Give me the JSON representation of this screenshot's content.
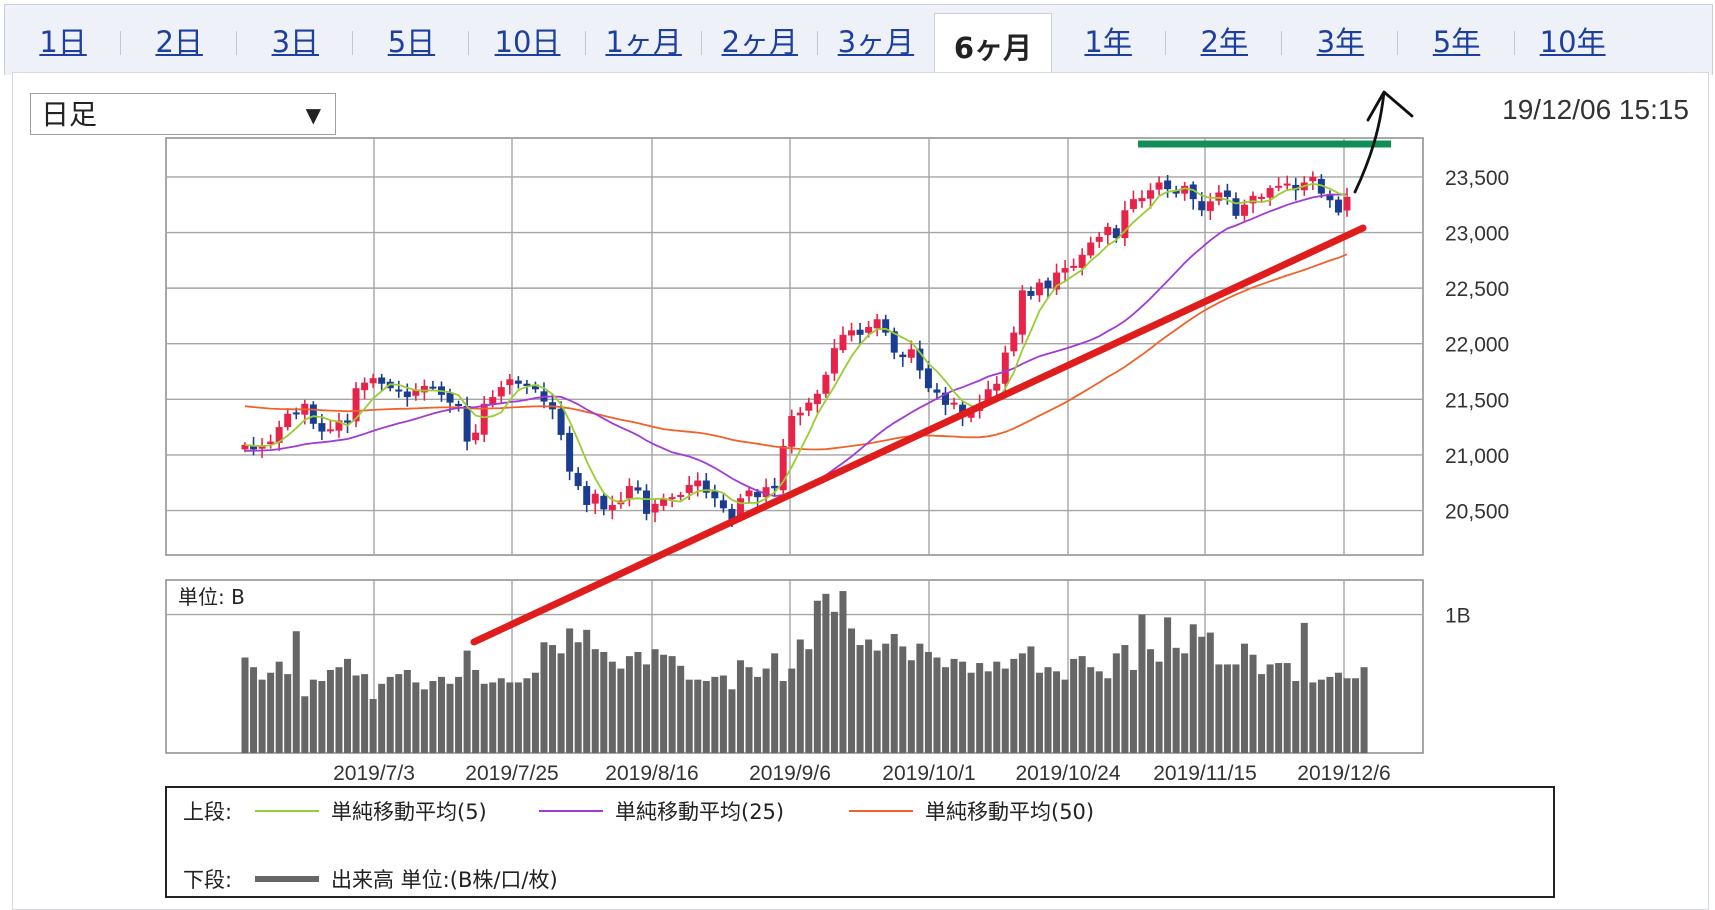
{
  "tabs": [
    {
      "label": "1日"
    },
    {
      "label": "2日"
    },
    {
      "label": "3日"
    },
    {
      "label": "5日"
    },
    {
      "label": "10日"
    },
    {
      "label": "1ヶ月"
    },
    {
      "label": "2ヶ月"
    },
    {
      "label": "3ヶ月"
    },
    {
      "label": "6ヶ月",
      "active": true
    },
    {
      "label": "1年"
    },
    {
      "label": "2年"
    },
    {
      "label": "3年"
    },
    {
      "label": "5年"
    },
    {
      "label": "10年"
    }
  ],
  "interval_select": {
    "value": "日足"
  },
  "datetime": "19/12/06 15:15",
  "colors": {
    "up_candle": "#e8234a",
    "down_candle": "#1b3d8f",
    "ma5": "#9acd32",
    "ma25": "#a23ad6",
    "ma50": "#f0622a",
    "volume": "#666666",
    "trendline": "#e01d1d",
    "resistance": "#0f8f55",
    "annotation_arrow": "#111111"
  },
  "chart_data": {
    "type": "candlestick",
    "ylim": [
      20100,
      23850
    ],
    "yticks": [
      "23,500",
      "23,000",
      "22,500",
      "22,000",
      "21,500",
      "21,000",
      "20,500"
    ],
    "ytick_values": [
      23500,
      23000,
      22500,
      22000,
      21500,
      21000,
      20500
    ],
    "xtick_labels": [
      "2019/7/3",
      "2019/7/25",
      "2019/8/16",
      "2019/9/6",
      "2019/10/1",
      "2019/10/24",
      "2019/11/15",
      "2019/12/6"
    ],
    "closes": [
      21090,
      21050,
      21080,
      21120,
      21250,
      21370,
      21380,
      21460,
      21280,
      21210,
      21230,
      21310,
      21290,
      21600,
      21650,
      21690,
      21640,
      21600,
      21570,
      21520,
      21580,
      21620,
      21610,
      21540,
      21470,
      21440,
      21120,
      21200,
      21460,
      21520,
      21610,
      21680,
      21640,
      21620,
      21590,
      21480,
      21410,
      21180,
      20850,
      20720,
      20550,
      20650,
      20510,
      20550,
      20590,
      20720,
      20680,
      20470,
      20560,
      20610,
      20620,
      20640,
      20730,
      20770,
      20660,
      20610,
      20520,
      20420,
      20610,
      20680,
      20620,
      20710,
      20700,
      21080,
      21350,
      21380,
      21470,
      21550,
      21720,
      21960,
      22080,
      22120,
      22080,
      22150,
      22220,
      22100,
      21920,
      21880,
      21950,
      21760,
      21600,
      21560,
      21450,
      21470,
      21340,
      21390,
      21460,
      21590,
      21640,
      21920,
      22100,
      22480,
      22430,
      22550,
      22500,
      22640,
      22680,
      22700,
      22800,
      22910,
      22960,
      23050,
      22950,
      23200,
      23300,
      23310,
      23380,
      23450,
      23390,
      23350,
      23420,
      23300,
      23200,
      23280,
      23360,
      23320,
      23150,
      23250,
      23330,
      23320,
      23400,
      23420,
      23440,
      23380,
      23450,
      23500,
      23350,
      23290,
      23180,
      23320
    ],
    "ma5_name": "単純移動平均(5)",
    "ma25_name": "単純移動平均(25)",
    "ma50_name": "単純移動平均(50)",
    "ma25_start": [
      21040,
      21050
    ],
    "ma50_start": [
      21450,
      21460
    ],
    "volume_ylim": [
      0,
      1.25
    ],
    "volume_unit": "単位: B",
    "volume_tick": "1B",
    "volumes": [
      0.69,
      0.62,
      0.53,
      0.58,
      0.66,
      0.57,
      0.88,
      0.41,
      0.53,
      0.52,
      0.6,
      0.62,
      0.68,
      0.56,
      0.57,
      0.39,
      0.5,
      0.55,
      0.57,
      0.6,
      0.51,
      0.46,
      0.52,
      0.55,
      0.5,
      0.55,
      0.74,
      0.6,
      0.5,
      0.51,
      0.54,
      0.51,
      0.51,
      0.54,
      0.58,
      0.8,
      0.78,
      0.72,
      0.9,
      0.8,
      0.89,
      0.75,
      0.73,
      0.66,
      0.61,
      0.7,
      0.73,
      0.64,
      0.75,
      0.71,
      0.7,
      0.63,
      0.53,
      0.53,
      0.52,
      0.55,
      0.56,
      0.46,
      0.67,
      0.62,
      0.55,
      0.61,
      0.72,
      0.52,
      0.61,
      0.82,
      0.75,
      1.1,
      1.15,
      1.02,
      1.17,
      0.9,
      0.78,
      0.82,
      0.74,
      0.79,
      0.86,
      0.77,
      0.67,
      0.79,
      0.73,
      0.69,
      0.62,
      0.68,
      0.66,
      0.58,
      0.65,
      0.59,
      0.66,
      0.61,
      0.68,
      0.72,
      0.77,
      0.58,
      0.62,
      0.59,
      0.53,
      0.68,
      0.7,
      0.62,
      0.59,
      0.54,
      0.72,
      0.78,
      0.6,
      1.0,
      0.75,
      0.66,
      0.98,
      0.76,
      0.72,
      0.93,
      0.84,
      0.87,
      0.64,
      0.64,
      0.64,
      0.79,
      0.71,
      0.57,
      0.64,
      0.65,
      0.65,
      0.52,
      0.94,
      0.51,
      0.53,
      0.55,
      0.58,
      0.54,
      0.54,
      0.62
    ]
  },
  "legend": {
    "upper_label": "上段:",
    "lower_label": "下段:",
    "ma5": "単純移動平均(5)",
    "ma25": "単純移動平均(25)",
    "ma50": "単純移動平均(50)",
    "volume": "出来高 単位:(B株/口/枚)"
  }
}
